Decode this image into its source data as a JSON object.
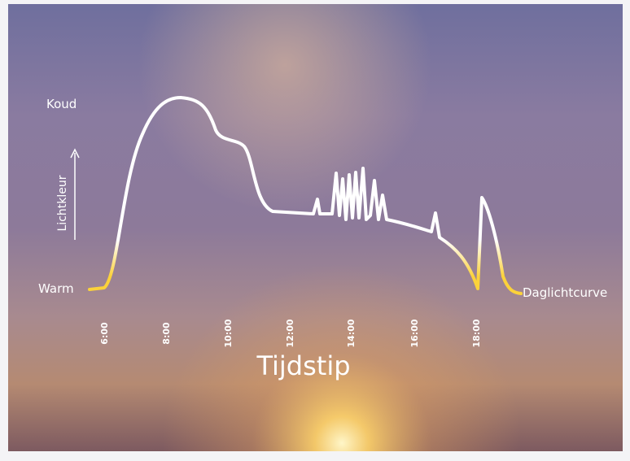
{
  "labels": {
    "cold": "Koud",
    "warm": "Warm",
    "axis_y": "Lichtkleur",
    "axis_x": "Tijdstip",
    "curve": "Daglichtcurve"
  },
  "times": [
    "6:00",
    "8:00",
    "10:00",
    "12:00",
    "14:00",
    "16:00",
    "18:00"
  ]
}
